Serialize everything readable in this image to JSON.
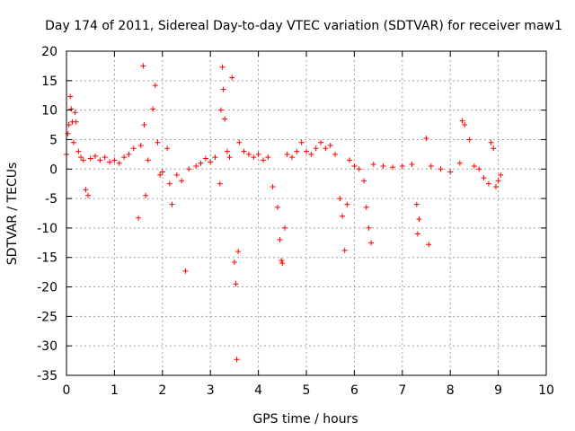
{
  "chart_data": {
    "type": "scatter",
    "title": "Day 174 of 2011, Sidereal Day-to-day VTEC variation (SDTVAR) for receiver maw1",
    "xlabel": "GPS time / hours",
    "ylabel": "SDTVAR / TECUs",
    "xlim": [
      0,
      10
    ],
    "ylim": [
      -35,
      20
    ],
    "x_ticks": [
      0,
      1,
      2,
      3,
      4,
      5,
      6,
      7,
      8,
      9,
      10
    ],
    "y_ticks": [
      -35,
      -30,
      -25,
      -20,
      -15,
      -10,
      -5,
      0,
      5,
      10,
      15,
      20
    ],
    "x_tick_labels": [
      "0",
      "1",
      "2",
      "3",
      "4",
      "5",
      "6",
      "7",
      "8",
      "9",
      "10"
    ],
    "y_tick_labels": [
      "-35",
      "-30",
      "-25",
      "-20",
      "-15",
      "-10",
      "-5",
      "0",
      "5",
      "10",
      "15",
      "20"
    ],
    "grid": true,
    "marker": "+",
    "series": [
      {
        "name": "SDTVAR",
        "color": "#ff0000",
        "points": [
          [
            0.0,
            2.5
          ],
          [
            0.03,
            6.0
          ],
          [
            0.05,
            7.5
          ],
          [
            0.08,
            12.3
          ],
          [
            0.1,
            10.2
          ],
          [
            0.12,
            8.0
          ],
          [
            0.15,
            4.5
          ],
          [
            0.18,
            9.6
          ],
          [
            0.2,
            8.0
          ],
          [
            0.25,
            3.0
          ],
          [
            0.3,
            2.0
          ],
          [
            0.35,
            1.5
          ],
          [
            0.4,
            -3.5
          ],
          [
            0.45,
            -4.5
          ],
          [
            0.5,
            1.8
          ],
          [
            0.6,
            2.2
          ],
          [
            0.7,
            1.5
          ],
          [
            0.8,
            2.0
          ],
          [
            0.9,
            1.2
          ],
          [
            1.0,
            1.5
          ],
          [
            1.1,
            1.0
          ],
          [
            1.2,
            2.0
          ],
          [
            1.3,
            2.5
          ],
          [
            1.4,
            3.5
          ],
          [
            1.5,
            -8.3
          ],
          [
            1.55,
            4.0
          ],
          [
            1.6,
            17.5
          ],
          [
            1.62,
            7.5
          ],
          [
            1.65,
            -4.5
          ],
          [
            1.7,
            1.5
          ],
          [
            1.8,
            10.2
          ],
          [
            1.85,
            14.2
          ],
          [
            1.9,
            4.5
          ],
          [
            1.95,
            -1.0
          ],
          [
            2.0,
            -0.5
          ],
          [
            2.1,
            3.5
          ],
          [
            2.15,
            -2.5
          ],
          [
            2.2,
            -6.0
          ],
          [
            2.3,
            -1.0
          ],
          [
            2.4,
            -2.0
          ],
          [
            2.48,
            -17.3
          ],
          [
            2.55,
            0.0
          ],
          [
            2.7,
            0.5
          ],
          [
            2.8,
            1.0
          ],
          [
            2.9,
            1.8
          ],
          [
            3.0,
            1.2
          ],
          [
            3.1,
            2.0
          ],
          [
            3.2,
            -2.5
          ],
          [
            3.22,
            10.0
          ],
          [
            3.25,
            17.3
          ],
          [
            3.27,
            13.5
          ],
          [
            3.3,
            8.5
          ],
          [
            3.35,
            3.0
          ],
          [
            3.4,
            2.0
          ],
          [
            3.45,
            15.5
          ],
          [
            3.5,
            -15.8
          ],
          [
            3.53,
            -19.5
          ],
          [
            3.55,
            -32.3
          ],
          [
            3.58,
            -14.0
          ],
          [
            3.6,
            4.5
          ],
          [
            3.7,
            3.0
          ],
          [
            3.8,
            2.5
          ],
          [
            3.9,
            2.0
          ],
          [
            4.0,
            2.5
          ],
          [
            4.1,
            1.5
          ],
          [
            4.2,
            2.0
          ],
          [
            4.3,
            -3.0
          ],
          [
            4.4,
            -6.5
          ],
          [
            4.45,
            -12.0
          ],
          [
            4.48,
            -15.5
          ],
          [
            4.5,
            -16.0
          ],
          [
            4.55,
            -10.0
          ],
          [
            4.6,
            2.5
          ],
          [
            4.7,
            2.0
          ],
          [
            4.8,
            3.0
          ],
          [
            4.9,
            4.5
          ],
          [
            5.0,
            3.0
          ],
          [
            5.1,
            2.5
          ],
          [
            5.2,
            3.5
          ],
          [
            5.3,
            4.5
          ],
          [
            5.4,
            3.5
          ],
          [
            5.5,
            4.0
          ],
          [
            5.6,
            2.5
          ],
          [
            5.7,
            -5.0
          ],
          [
            5.75,
            -8.0
          ],
          [
            5.8,
            -13.8
          ],
          [
            5.85,
            -6.0
          ],
          [
            5.9,
            1.5
          ],
          [
            6.0,
            0.5
          ],
          [
            6.1,
            0.0
          ],
          [
            6.2,
            -2.0
          ],
          [
            6.25,
            -6.5
          ],
          [
            6.3,
            -10.0
          ],
          [
            6.35,
            -12.5
          ],
          [
            6.4,
            0.8
          ],
          [
            6.6,
            0.5
          ],
          [
            6.8,
            0.3
          ],
          [
            7.0,
            0.5
          ],
          [
            7.2,
            0.8
          ],
          [
            7.3,
            -6.0
          ],
          [
            7.32,
            -11.0
          ],
          [
            7.35,
            -8.5
          ],
          [
            7.5,
            5.2
          ],
          [
            7.55,
            -12.8
          ],
          [
            7.6,
            0.5
          ],
          [
            7.8,
            0.0
          ],
          [
            8.0,
            -0.5
          ],
          [
            8.2,
            1.0
          ],
          [
            8.25,
            8.2
          ],
          [
            8.3,
            7.5
          ],
          [
            8.4,
            5.0
          ],
          [
            8.5,
            0.5
          ],
          [
            8.6,
            0.0
          ],
          [
            8.7,
            -1.5
          ],
          [
            8.8,
            -2.5
          ],
          [
            8.85,
            4.5
          ],
          [
            8.9,
            3.5
          ],
          [
            8.95,
            -3.0
          ],
          [
            9.0,
            -2.0
          ],
          [
            9.05,
            -1.0
          ]
        ]
      }
    ]
  }
}
